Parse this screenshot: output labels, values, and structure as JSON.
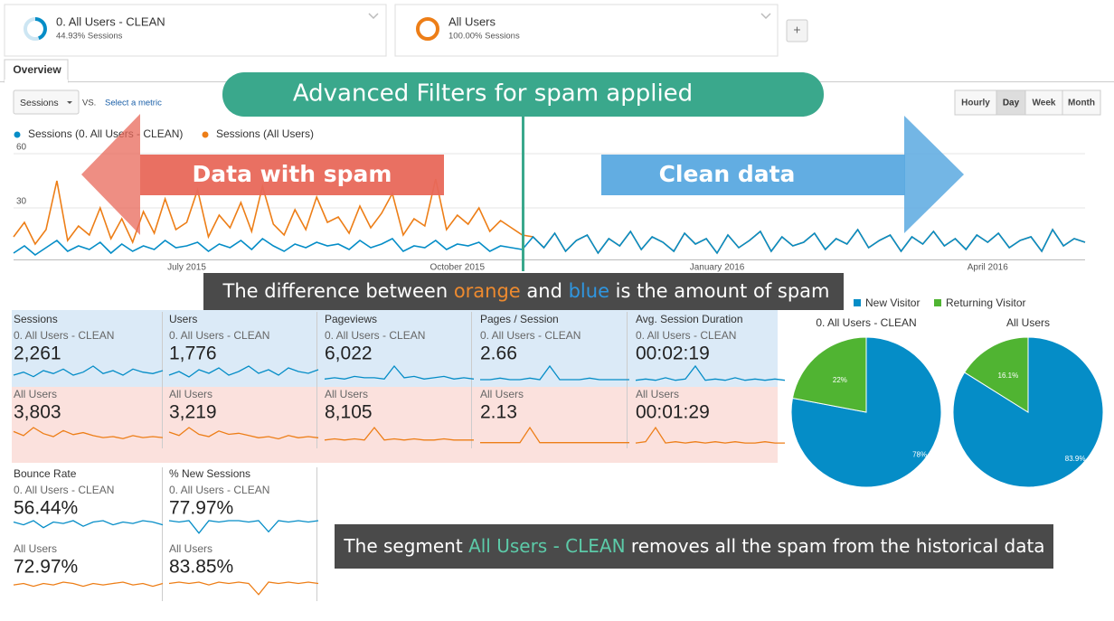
{
  "segments": [
    {
      "name": "0. All Users - CLEAN",
      "share": "44.93% Sessions"
    },
    {
      "name": "All Users",
      "share": "100.00% Sessions"
    }
  ],
  "add_button": "+",
  "tab": "Overview",
  "metric_select": "Sessions",
  "vs": "VS.",
  "select_metric": "Select a metric",
  "granularity": [
    "Hourly",
    "Day",
    "Week",
    "Month"
  ],
  "granularity_selected": "Day",
  "annotations": {
    "banner": "Advanced Filters for spam applied",
    "left_arrow": "Data with spam",
    "right_arrow": "Clean data",
    "difference": [
      "The difference between ",
      "orange",
      " and ",
      "blue",
      " is the amount of spam"
    ],
    "segment_note": [
      "The segment ",
      "All Users - CLEAN",
      " removes all the spam from the historical data"
    ]
  },
  "chart_data": [
    {
      "type": "line",
      "ylim": [
        0,
        60
      ],
      "yticks": [
        30,
        60
      ],
      "grid": true,
      "categories": [
        null,
        null,
        null,
        null,
        null,
        null,
        null,
        null,
        null,
        null,
        null,
        null,
        null,
        null,
        null,
        null,
        "July 2015",
        null,
        null,
        null,
        null,
        null,
        null,
        null,
        null,
        null,
        null,
        null,
        null,
        null,
        null,
        null,
        null,
        null,
        null,
        null,
        null,
        null,
        null,
        null,
        null,
        "October 2015",
        null,
        null,
        null,
        null,
        null,
        null,
        null,
        null,
        null,
        null,
        null,
        null,
        null,
        null,
        null,
        null,
        null,
        null,
        null,
        null,
        null,
        null,
        null,
        "January 2016",
        null,
        null,
        null,
        null,
        null,
        null,
        null,
        null,
        null,
        null,
        null,
        null,
        null,
        null,
        null,
        null,
        null,
        null,
        null,
        null,
        null,
        null,
        null,
        null,
        "April 2016",
        null,
        null,
        null,
        null,
        null,
        null,
        null,
        null,
        null
      ],
      "series": [
        {
          "name": "Sessions (0. All Users - CLEAN)",
          "color": "#058dc7",
          "values": [
            5,
            9,
            4,
            8,
            12,
            6,
            9,
            7,
            11,
            5,
            10,
            6,
            9,
            7,
            12,
            8,
            9,
            11,
            6,
            10,
            8,
            12,
            7,
            13,
            9,
            6,
            10,
            8,
            11,
            9,
            10,
            7,
            12,
            8,
            10,
            13,
            6,
            9,
            8,
            12,
            7,
            10,
            9,
            11,
            6,
            9,
            8,
            7,
            14,
            8,
            16,
            6,
            12,
            15,
            5,
            13,
            9,
            17,
            7,
            14,
            11,
            6,
            16,
            10,
            13,
            5,
            15,
            8,
            12,
            17,
            6,
            14,
            9,
            11,
            16,
            7,
            13,
            10,
            18,
            8,
            12,
            15,
            6,
            14,
            10,
            17,
            9,
            13,
            7,
            15,
            11,
            16,
            8,
            12,
            14,
            6,
            18,
            9,
            13,
            11
          ]
        },
        {
          "name": "Sessions (All Users)",
          "color": "#ed7e17",
          "values": [
            14,
            22,
            10,
            18,
            45,
            12,
            20,
            15,
            30,
            13,
            24,
            11,
            28,
            16,
            35,
            18,
            22,
            40,
            14,
            26,
            19,
            33,
            17,
            42,
            21,
            15,
            29,
            18,
            36,
            22,
            25,
            16,
            31,
            19,
            27,
            38,
            15,
            24,
            20,
            46,
            18,
            26,
            21,
            30,
            17,
            23,
            19,
            15,
            14,
            8,
            16,
            6,
            12,
            15,
            5,
            13,
            9,
            17,
            7,
            14,
            11,
            6,
            16,
            10,
            13,
            5,
            15,
            8,
            12,
            17,
            6,
            14,
            9,
            11,
            16,
            7,
            13,
            10,
            18,
            8,
            12,
            15,
            6,
            14,
            10,
            17,
            9,
            13,
            7,
            15,
            11,
            16,
            8,
            12,
            14,
            6,
            18,
            9,
            13,
            11
          ]
        }
      ]
    },
    {
      "type": "pie",
      "title": "0. All Users - CLEAN",
      "categories": [
        "New Visitor",
        "Returning Visitor"
      ],
      "colors": [
        "#058dc7",
        "#50b432"
      ],
      "values": [
        78,
        22
      ],
      "value_labels": [
        "78%",
        "22%"
      ]
    },
    {
      "type": "pie",
      "title": "All Users",
      "values": [
        83.9,
        16.1
      ],
      "value_labels": [
        "83.9%",
        "16.1%"
      ]
    }
  ],
  "metrics": [
    {
      "name": "Sessions",
      "clean": "2,261",
      "all": "3,803",
      "spark_clean": [
        6,
        8,
        5,
        9,
        7,
        10,
        6,
        8,
        12,
        7,
        9,
        6,
        10,
        8,
        7,
        9
      ],
      "spark_all": [
        14,
        10,
        18,
        12,
        9,
        15,
        11,
        13,
        10,
        8,
        9,
        7,
        10,
        8,
        9,
        8
      ]
    },
    {
      "name": "Users",
      "clean": "1,776",
      "all": "3,219",
      "spark_clean": [
        5,
        7,
        4,
        8,
        6,
        9,
        5,
        7,
        10,
        6,
        8,
        5,
        9,
        7,
        6,
        8
      ],
      "spark_all": [
        12,
        9,
        16,
        10,
        8,
        13,
        10,
        11,
        9,
        7,
        8,
        6,
        9,
        7,
        8,
        7
      ]
    },
    {
      "name": "Pageviews",
      "clean": "6,022",
      "all": "8,105",
      "spark_clean": [
        4,
        5,
        4,
        6,
        5,
        5,
        4,
        14,
        5,
        6,
        4,
        5,
        6,
        4,
        5,
        4
      ],
      "spark_all": [
        5,
        6,
        5,
        6,
        5,
        16,
        5,
        6,
        5,
        6,
        5,
        5,
        6,
        5,
        5,
        5
      ]
    },
    {
      "name": "Pages / Session",
      "clean": "2.66",
      "all": "2.13",
      "spark_clean": [
        3,
        3,
        4,
        3,
        3,
        4,
        3,
        12,
        3,
        3,
        3,
        4,
        3,
        3,
        3,
        3
      ],
      "spark_all": [
        2,
        2,
        2,
        2,
        2,
        12,
        2,
        2,
        2,
        2,
        2,
        2,
        2,
        2,
        2,
        2
      ]
    },
    {
      "name": "Avg. Session Duration",
      "clean": "00:02:19",
      "all": "00:01:29",
      "spark_clean": [
        3,
        4,
        3,
        5,
        3,
        4,
        14,
        3,
        4,
        3,
        5,
        3,
        4,
        3,
        4,
        3
      ],
      "spark_all": [
        2,
        3,
        14,
        2,
        3,
        2,
        3,
        2,
        3,
        2,
        3,
        2,
        2,
        3,
        2,
        2
      ]
    },
    {
      "name": "Bounce Rate",
      "clean": "56.44%",
      "all": "72.97%",
      "spark_clean": [
        12,
        10,
        13,
        8,
        12,
        11,
        13,
        9,
        12,
        13,
        10,
        12,
        11,
        13,
        12,
        10
      ],
      "spark_all": [
        11,
        12,
        10,
        12,
        11,
        13,
        12,
        10,
        12,
        11,
        12,
        13,
        11,
        12,
        10,
        12
      ]
    },
    {
      "name": "% New Sessions",
      "clean": "77.97%",
      "all": "83.85%",
      "spark_clean": [
        13,
        12,
        13,
        4,
        13,
        12,
        13,
        13,
        12,
        13,
        5,
        13,
        12,
        13,
        12,
        13
      ],
      "spark_all": [
        12,
        13,
        12,
        13,
        11,
        13,
        12,
        13,
        12,
        4,
        13,
        12,
        13,
        12,
        13,
        12
      ]
    }
  ]
}
